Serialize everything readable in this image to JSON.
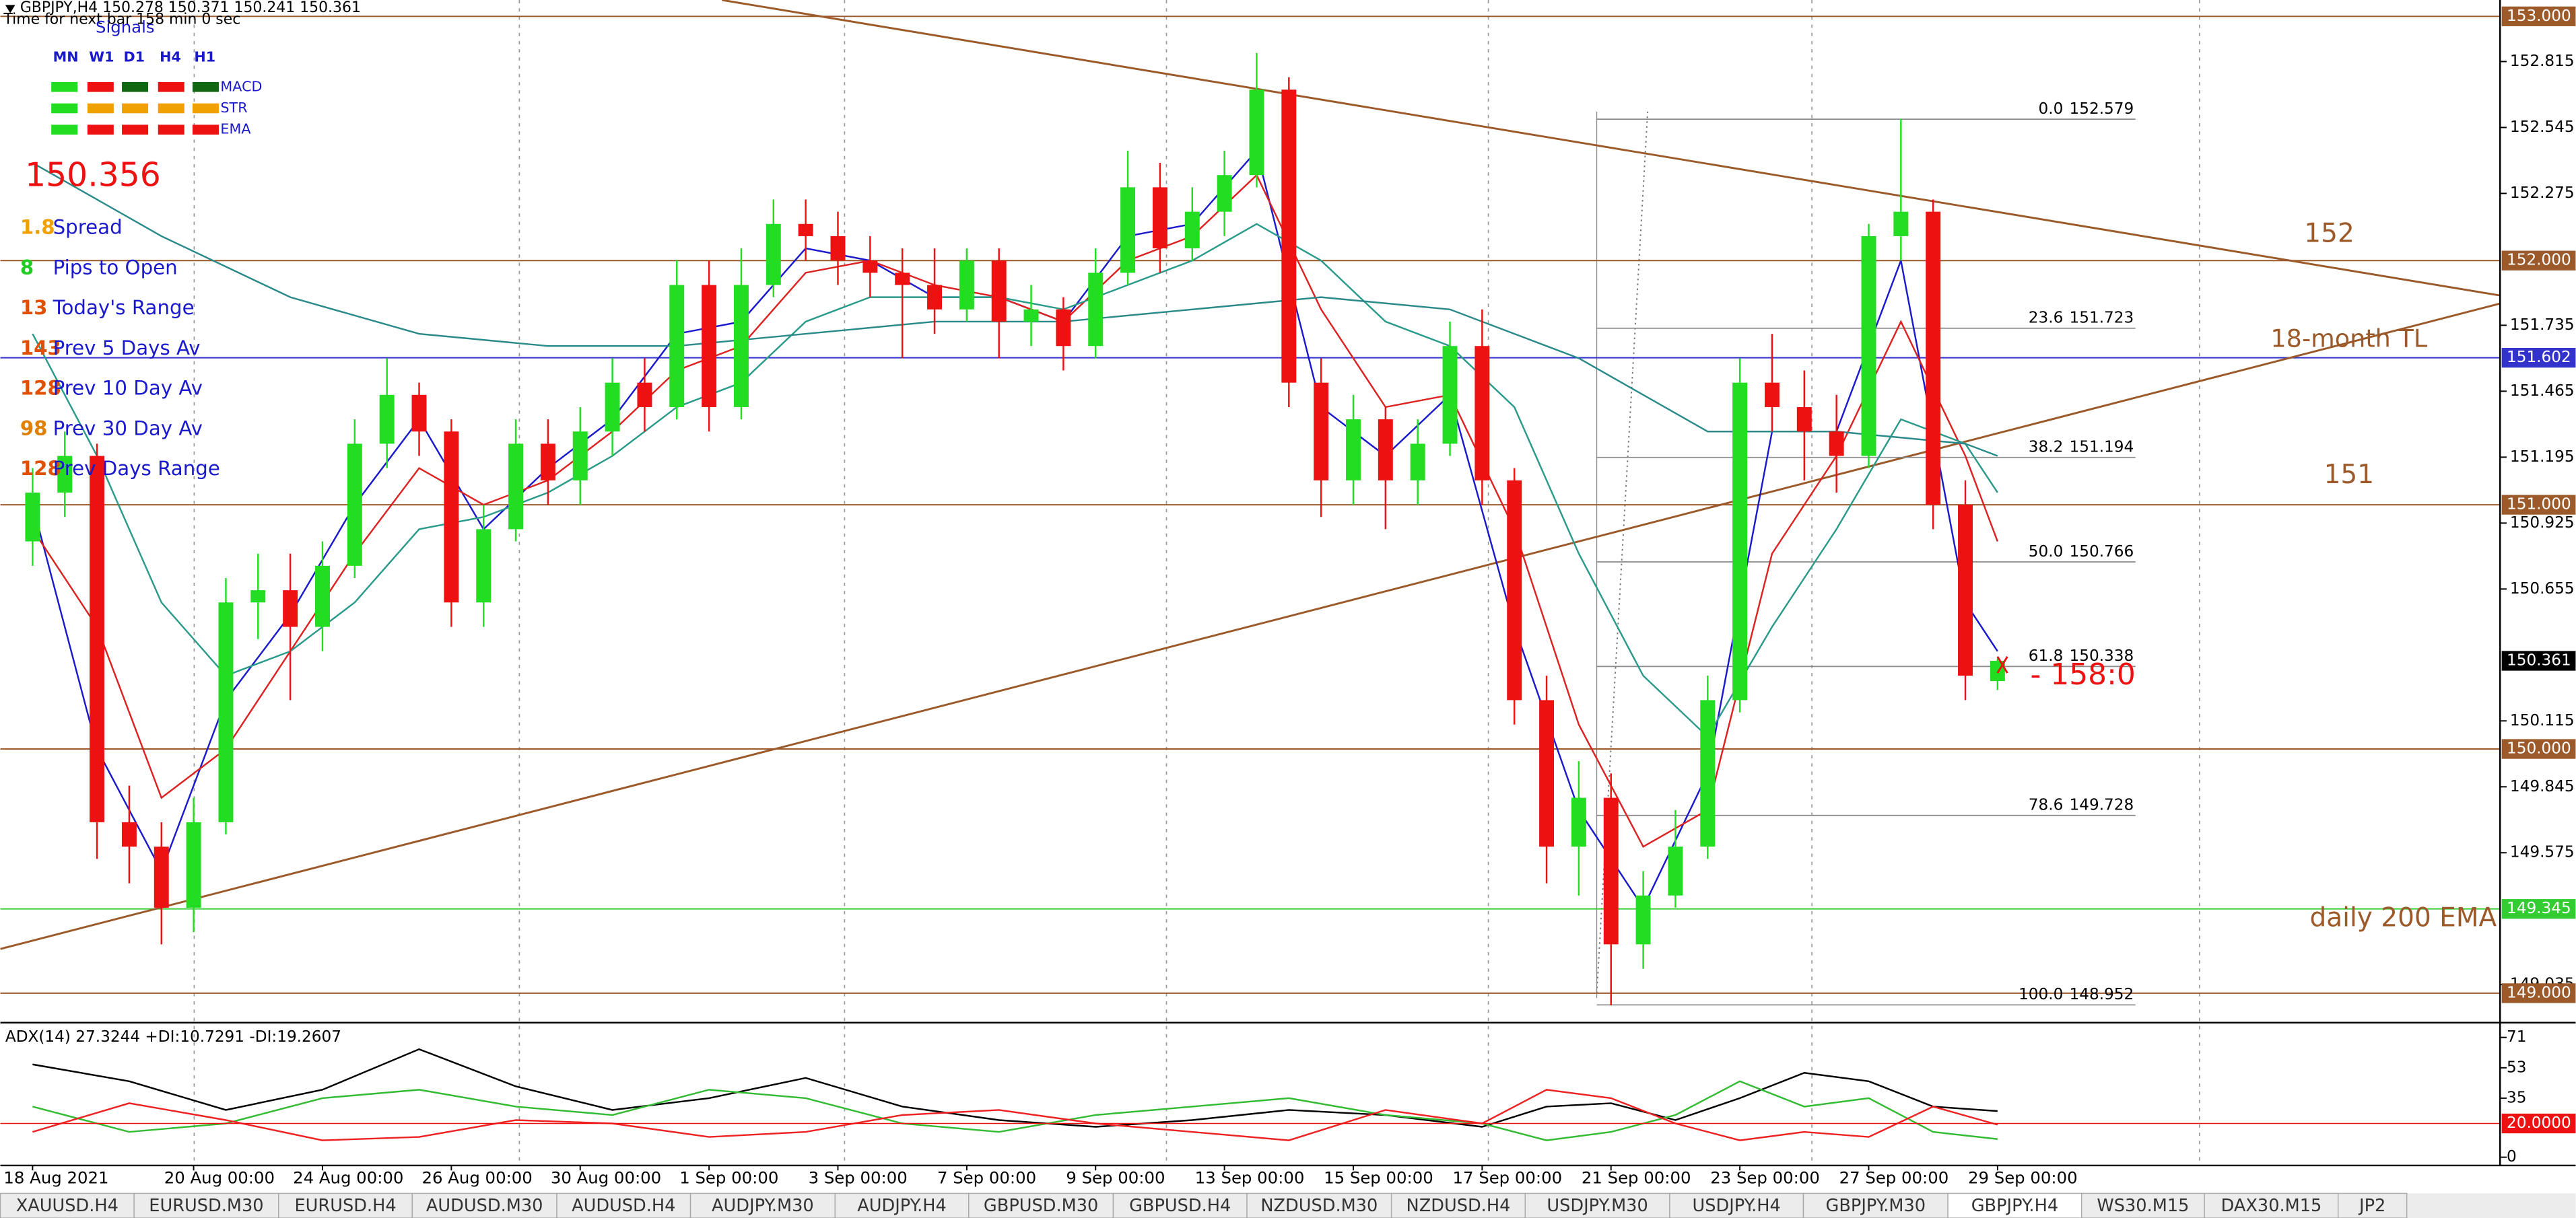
{
  "window": {
    "header": "GBPJPY,H4 150.278 150.371 150.241 150.361",
    "timer": "Time for next bar 158 min 0 sec",
    "tabs": [
      "XAUUSD.H4",
      "EURUSD.M30",
      "EURUSD.H4",
      "AUDUSD.M30",
      "AUDUSD.H4",
      "AUDJPY.M30",
      "AUDJPY.H4",
      "GBPUSD.M30",
      "GBPUSD.H4",
      "NZDUSD.M30",
      "NZDUSD.H4",
      "USDJPY.M30",
      "USDJPY.H4",
      "GBPJPY.M30",
      "GBPJPY.H4",
      "WS30.M15",
      "DAX30.M15",
      "JP2"
    ],
    "active_tab": 14
  },
  "signals": {
    "title": "Signals",
    "columns": [
      "MN",
      "W1",
      "D1",
      "H4",
      "H1"
    ],
    "rows": [
      {
        "name": "MACD",
        "colors": [
          "#22dd22",
          "#ee1111",
          "#116611",
          "#ee1111",
          "#116611"
        ]
      },
      {
        "name": "STR",
        "colors": [
          "#22dd22",
          "#f0a000",
          "#f0a000",
          "#f0a000",
          "#f0a000"
        ]
      },
      {
        "name": "EMA",
        "colors": [
          "#22dd22",
          "#ee1111",
          "#ee1111",
          "#ee1111",
          "#ee1111"
        ]
      }
    ]
  },
  "info_panel": {
    "bid": 150.356,
    "bid_color": "#ee1111",
    "rows": [
      {
        "value": 1.8,
        "label": "Spread",
        "color": "#f0a000"
      },
      {
        "value": 8,
        "label": "Pips to Open",
        "color": "#22cc22"
      },
      {
        "value": 13,
        "label": "Today's Range",
        "color": "#e05000"
      },
      {
        "value": 143,
        "label": "Prev 5 Days Av",
        "color": "#e05000"
      },
      {
        "value": 128,
        "label": "Prev 10 Day Av",
        "color": "#e05000"
      },
      {
        "value": 98,
        "label": "Prev 30 Day Av",
        "color": "#e08000"
      },
      {
        "value": 128,
        "label": "Prev Days Range",
        "color": "#e05000"
      }
    ]
  },
  "chart_data": [
    {
      "type": "candlestick",
      "xlim": [
        -1,
        76.6
      ],
      "ylim": [
        148.886,
        153.067
      ],
      "xticks": [
        {
          "value": 0,
          "label": "18 Aug 2021"
        },
        {
          "value": 5,
          "label": "20 Aug 00:00"
        },
        {
          "value": 9,
          "label": "24 Aug 00:00"
        },
        {
          "value": 13,
          "label": "26 Aug 00:00"
        },
        {
          "value": 17,
          "label": "30 Aug 00:00"
        },
        {
          "value": 21,
          "label": "1 Sep 00:00"
        },
        {
          "value": 25,
          "label": "3 Sep 00:00"
        },
        {
          "value": 29,
          "label": "7 Sep 00:00"
        },
        {
          "value": 33,
          "label": "9 Sep 00:00"
        },
        {
          "value": 37,
          "label": "13 Sep 00:00"
        },
        {
          "value": 41,
          "label": "15 Sep 00:00"
        },
        {
          "value": 45,
          "label": "17 Sep 00:00"
        },
        {
          "value": 49,
          "label": "21 Sep 00:00"
        },
        {
          "value": 53,
          "label": "23 Sep 00:00"
        },
        {
          "value": 57,
          "label": "27 Sep 00:00"
        },
        {
          "value": 61,
          "label": "29 Sep 00:00"
        }
      ],
      "yticks": [
        152.815,
        152.545,
        152.275,
        151.735,
        151.465,
        151.195,
        150.925,
        150.655,
        150.115,
        149.845,
        149.575,
        149.035
      ],
      "open": [
        150.85,
        151.05,
        151.2,
        149.7,
        149.6,
        149.35,
        149.7,
        150.6,
        150.65,
        150.5,
        150.75,
        151.25,
        151.45,
        151.3,
        150.6,
        150.9,
        151.25,
        151.1,
        151.3,
        151.5,
        151.4,
        151.9,
        151.4,
        151.9,
        152.15,
        152.1,
        152.0,
        151.95,
        151.9,
        151.8,
        152.0,
        151.75,
        151.8,
        151.65,
        151.95,
        152.3,
        152.05,
        152.2,
        152.35,
        152.7,
        151.5,
        151.1,
        151.35,
        151.1,
        151.25,
        151.65,
        151.1,
        150.2,
        149.6,
        149.8,
        149.2,
        149.4,
        149.6,
        150.2,
        151.5,
        151.4,
        151.3,
        151.2,
        152.1,
        152.2,
        151.0,
        150.278
      ],
      "high": [
        151.15,
        151.3,
        151.25,
        149.85,
        149.7,
        149.8,
        150.7,
        150.8,
        150.8,
        150.85,
        151.35,
        151.6,
        151.5,
        151.35,
        151.0,
        151.35,
        151.35,
        151.4,
        151.6,
        151.6,
        152.0,
        152.0,
        152.05,
        152.25,
        152.25,
        152.2,
        152.1,
        152.05,
        152.05,
        152.05,
        152.05,
        151.9,
        151.85,
        152.05,
        152.45,
        152.4,
        152.3,
        152.45,
        152.85,
        152.75,
        151.6,
        151.45,
        151.4,
        151.35,
        151.75,
        151.8,
        151.15,
        150.3,
        149.95,
        149.9,
        149.5,
        149.75,
        150.3,
        151.6,
        151.7,
        151.55,
        151.45,
        152.15,
        152.58,
        152.25,
        151.1,
        150.371
      ],
      "low": [
        150.75,
        150.95,
        149.55,
        149.45,
        149.2,
        149.25,
        149.65,
        150.45,
        150.2,
        150.4,
        150.7,
        151.15,
        151.2,
        150.5,
        150.5,
        150.85,
        151.0,
        151.0,
        151.2,
        151.3,
        151.35,
        151.3,
        151.35,
        151.85,
        152.0,
        151.9,
        151.85,
        151.6,
        151.7,
        151.75,
        151.6,
        151.65,
        151.55,
        151.6,
        151.9,
        151.95,
        152.0,
        152.1,
        152.3,
        151.4,
        150.95,
        151.0,
        150.9,
        151.0,
        151.2,
        151.0,
        150.1,
        149.45,
        149.4,
        148.95,
        149.1,
        149.35,
        149.55,
        150.15,
        151.3,
        151.1,
        151.05,
        151.15,
        152.0,
        150.9,
        150.2,
        150.241
      ],
      "close": [
        151.05,
        151.2,
        149.7,
        149.6,
        149.35,
        149.7,
        150.6,
        150.65,
        150.5,
        150.75,
        151.25,
        151.45,
        151.3,
        150.6,
        150.9,
        151.25,
        151.1,
        151.3,
        151.5,
        151.4,
        151.9,
        151.4,
        151.9,
        152.15,
        152.1,
        152.0,
        151.95,
        151.9,
        151.8,
        152.0,
        151.75,
        151.8,
        151.65,
        151.95,
        152.3,
        152.05,
        152.2,
        152.35,
        152.7,
        151.5,
        151.1,
        151.35,
        151.1,
        151.25,
        151.65,
        151.1,
        150.2,
        149.6,
        149.8,
        149.2,
        149.4,
        149.6,
        150.2,
        151.5,
        151.4,
        151.3,
        151.2,
        152.1,
        152.2,
        151.0,
        150.3,
        150.361
      ],
      "up_color": "#22dd22",
      "down_color": "#ee1111",
      "series": [
        {
          "color": "#1a1acc",
          "x": [
            0,
            2,
            4,
            6,
            8,
            10,
            12,
            14,
            16,
            18,
            20,
            22,
            24,
            26,
            28,
            30,
            32,
            34,
            36,
            38,
            40,
            42,
            44,
            46,
            48,
            50,
            52,
            54,
            56,
            58,
            60,
            61
          ],
          "values": [
            151.0,
            150.0,
            149.5,
            150.2,
            150.55,
            151.0,
            151.35,
            150.9,
            151.15,
            151.35,
            151.7,
            151.75,
            152.05,
            152.0,
            151.85,
            151.85,
            151.75,
            152.1,
            152.15,
            152.45,
            151.4,
            151.2,
            151.45,
            150.5,
            149.75,
            149.35,
            149.9,
            151.3,
            151.3,
            152.0,
            150.6,
            150.4
          ]
        },
        {
          "color": "#dd2222",
          "x": [
            0,
            2,
            4,
            6,
            8,
            10,
            12,
            14,
            16,
            18,
            20,
            22,
            24,
            26,
            28,
            30,
            32,
            34,
            36,
            38,
            40,
            42,
            44,
            46,
            48,
            50,
            52,
            54,
            56,
            58,
            60,
            61
          ],
          "values": [
            150.9,
            150.5,
            149.8,
            150.0,
            150.4,
            150.8,
            151.15,
            151.0,
            151.1,
            151.3,
            151.55,
            151.65,
            151.95,
            152.0,
            151.9,
            151.85,
            151.75,
            152.0,
            152.1,
            152.35,
            151.8,
            151.4,
            151.45,
            150.9,
            150.1,
            149.6,
            149.75,
            150.8,
            151.2,
            151.75,
            151.2,
            150.85
          ]
        },
        {
          "color": "#2a9a8a",
          "x": [
            0,
            2,
            4,
            6,
            8,
            10,
            12,
            14,
            16,
            18,
            20,
            22,
            24,
            26,
            28,
            30,
            32,
            34,
            36,
            38,
            40,
            42,
            44,
            46,
            48,
            50,
            52,
            54,
            56,
            58,
            60,
            61
          ],
          "values": [
            151.7,
            151.2,
            150.6,
            150.3,
            150.4,
            150.6,
            150.9,
            150.95,
            151.05,
            151.2,
            151.4,
            151.5,
            151.75,
            151.85,
            151.85,
            151.85,
            151.8,
            151.9,
            152.0,
            152.15,
            152.0,
            151.75,
            151.65,
            151.4,
            150.8,
            150.3,
            150.05,
            150.5,
            150.9,
            151.35,
            151.25,
            151.05
          ]
        },
        {
          "color": "#2a8a8a",
          "x": [
            0,
            4,
            8,
            12,
            16,
            20,
            24,
            28,
            32,
            36,
            40,
            44,
            48,
            52,
            56,
            60,
            61
          ],
          "values": [
            152.4,
            152.1,
            151.85,
            151.7,
            151.65,
            151.65,
            151.7,
            151.75,
            151.75,
            151.8,
            151.85,
            151.8,
            151.6,
            151.3,
            151.3,
            151.25,
            151.2
          ]
        }
      ],
      "levels": [
        {
          "value": 153,
          "label": "153.000",
          "color": "#9c5a2a"
        },
        {
          "value": 152,
          "label": "152.000",
          "color": "#9c5a2a"
        },
        {
          "value": 151.602,
          "label": "151.602",
          "color": "#3333cc"
        },
        {
          "value": 151,
          "label": "151.000",
          "color": "#9c5a2a"
        },
        {
          "value": 150,
          "label": "150.000",
          "color": "#9c5a2a"
        },
        {
          "value": 149.345,
          "label": "149.345",
          "color": "#33cc33"
        },
        {
          "value": 149,
          "label": "149.000",
          "color": "#9c5a2a"
        }
      ],
      "last": {
        "value": 150.361,
        "label": "150.361"
      },
      "trendlines": [
        {
          "color": "#9c5a2a",
          "x": [
            21.4,
            76.6
          ],
          "values": [
            153.067,
            151.857
          ]
        },
        {
          "color": "#9c5a2a",
          "x": [
            -1,
            76.6
          ],
          "values": [
            149.181,
            151.824
          ]
        }
      ],
      "fibonacci": [
        {
          "ratio": {
            "value": 0,
            "label": "0.0"
          },
          "price": 152.579
        },
        {
          "ratio": 23.6,
          "price": 151.723
        },
        {
          "ratio": 38.2,
          "price": 151.194
        },
        {
          "ratio": {
            "value": 50,
            "label": "50.0"
          },
          "price": 150.766
        },
        {
          "ratio": 61.8,
          "price": 150.338
        },
        {
          "ratio": 78.6,
          "price": 149.728
        },
        {
          "ratio": {
            "value": 100,
            "label": "100.0"
          },
          "price": 148.952
        }
      ],
      "annotations": [
        {
          "text": "152",
          "color": "#9c5a2a"
        },
        {
          "text": "18-month TL",
          "color": "#9c5a2a"
        },
        {
          "text": "151",
          "color": "#9c5a2a"
        },
        {
          "text": "daily 200 EMA",
          "color": "#9c5a2a"
        },
        {
          "text": "- 158:0",
          "color": "#ee1111"
        }
      ]
    },
    {
      "type": "line",
      "title": "ADX(14) 27.3244 +DI:10.7291 -DI:19.2607",
      "xlim": [
        -1,
        76.6
      ],
      "ylim": [
        -4.9,
        77.8
      ],
      "yticks": [
        71,
        53,
        35,
        0
      ],
      "level": {
        "value": 20,
        "label": "20.0000",
        "color": "#ee1111"
      },
      "x": [
        0,
        3,
        6,
        9,
        12,
        15,
        18,
        21,
        24,
        27,
        30,
        33,
        36,
        39,
        42,
        45,
        47,
        49,
        51,
        53,
        55,
        57,
        59,
        61
      ],
      "series": [
        {
          "color": "#000000",
          "values": [
            55,
            45,
            28,
            40,
            64,
            42,
            28,
            35,
            47,
            30,
            22,
            18,
            22,
            28,
            25,
            18,
            30,
            32,
            22,
            35,
            50,
            45,
            30,
            27.3244
          ]
        },
        {
          "color": "#33bb33",
          "values": [
            30,
            15,
            20,
            35,
            40,
            30,
            25,
            40,
            35,
            20,
            15,
            25,
            30,
            35,
            25,
            20,
            10,
            15,
            25,
            45,
            30,
            35,
            15,
            10.7291
          ]
        },
        {
          "color": "#ee2222",
          "values": [
            15,
            32,
            22,
            10,
            12,
            22,
            20,
            12,
            15,
            25,
            28,
            20,
            15,
            10,
            28,
            20,
            40,
            35,
            20,
            10,
            15,
            12,
            30,
            19.2607
          ]
        }
      ]
    }
  ]
}
